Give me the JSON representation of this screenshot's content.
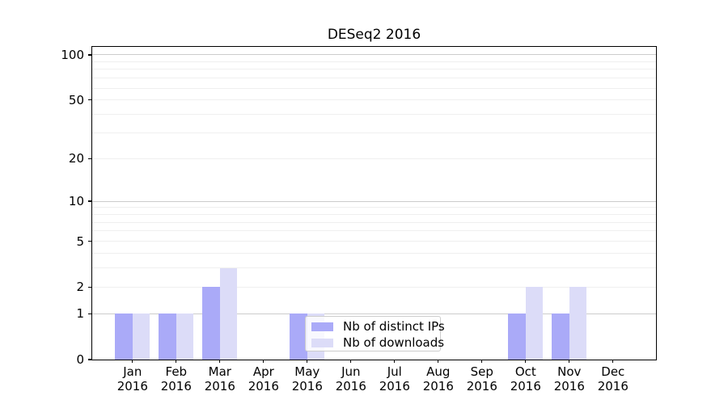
{
  "title": "DESeq2 2016",
  "legend": {
    "items": [
      {
        "label": "Nb of distinct IPs",
        "color": "#aaaaf8"
      },
      {
        "label": "Nb of downloads",
        "color": "#dcdcf8"
      }
    ]
  },
  "colors": {
    "series_dark": "#aaaaf8",
    "series_light": "#dcdcf8",
    "grid_major": "#cccccc",
    "grid_minor": "#efefef",
    "axis": "#000000",
    "background": "#ffffff"
  },
  "chart_data": {
    "type": "bar",
    "title": "DESeq2 2016",
    "categories": [
      "Jan 2016",
      "Feb 2016",
      "Mar 2016",
      "Apr 2016",
      "May 2016",
      "Jun 2016",
      "Jul 2016",
      "Aug 2016",
      "Sep 2016",
      "Oct 2016",
      "Nov 2016",
      "Dec 2016"
    ],
    "series": [
      {
        "name": "Nb of distinct IPs",
        "color": "#aaaaf8",
        "values": [
          1,
          1,
          2,
          0,
          1,
          0,
          0,
          0,
          0,
          1,
          1,
          0
        ]
      },
      {
        "name": "Nb of downloads",
        "color": "#dcdcf8",
        "values": [
          1,
          1,
          3,
          0,
          1,
          0,
          0,
          0,
          0,
          2,
          2,
          0
        ]
      }
    ],
    "xlabel": "",
    "ylabel": "",
    "yscale": "log1p",
    "ylim": [
      0,
      113
    ],
    "yticks": [
      0,
      1,
      2,
      5,
      10,
      20,
      50,
      100
    ],
    "grid_major_at": [
      1,
      10,
      100
    ],
    "grid_minor_at": [
      2,
      3,
      4,
      5,
      6,
      7,
      8,
      9,
      20,
      30,
      40,
      50,
      60,
      70,
      80,
      90
    ],
    "grid": "on",
    "legend_position": "inside lower-center"
  }
}
